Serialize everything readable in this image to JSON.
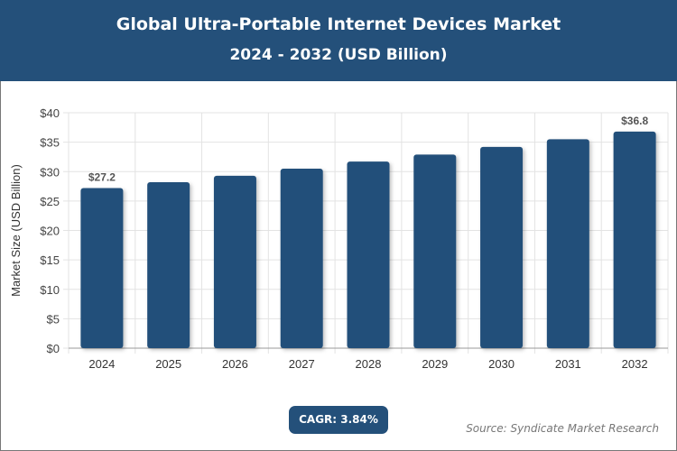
{
  "header": {
    "title": "Global Ultra-Portable Internet Devices Market",
    "subtitle": "2024 - 2032 (USD Billion)"
  },
  "chart_data": {
    "type": "bar",
    "categories": [
      "2024",
      "2025",
      "2026",
      "2027",
      "2028",
      "2029",
      "2030",
      "2031",
      "2032"
    ],
    "values": [
      27.2,
      28.2,
      29.3,
      30.5,
      31.7,
      32.9,
      34.2,
      35.5,
      36.8
    ],
    "data_labels": {
      "0": "$27.2",
      "8": "$36.8"
    },
    "ylabel": "Market Size (USD Billion)",
    "xlabel": "",
    "ylim": [
      0,
      40
    ],
    "yticks": [
      "$0",
      "$5",
      "$10",
      "$15",
      "$20",
      "$25",
      "$30",
      "$35",
      "$40"
    ],
    "grid": true,
    "bar_color": "#24507a"
  },
  "footer": {
    "cagr": "CAGR: 3.84%",
    "source": "Source: Syndicate Market Research"
  }
}
